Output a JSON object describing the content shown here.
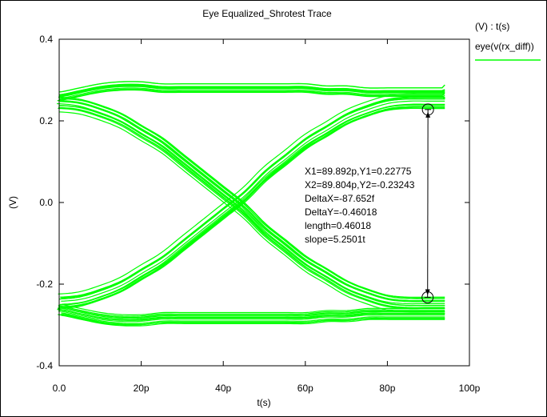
{
  "window": {
    "title": "Eye Equalized_Shrotest Trace"
  },
  "legend": {
    "header": "(V) : t(s)",
    "entry": "eye(v(rx_diff))",
    "color": "#00ff00"
  },
  "chart_data": {
    "type": "line",
    "title": "Eye Equalized_Shrotest Trace",
    "xlabel": "t(s)",
    "ylabel": "(V)",
    "xlim": [
      0,
      100
    ],
    "ylim": [
      -0.4,
      0.4
    ],
    "x_unit": "p",
    "x_ticks": [
      "0.0",
      "20p",
      "40p",
      "60p",
      "80p",
      "100p"
    ],
    "y_ticks": [
      "-0.4",
      "-0.2",
      "0.0",
      "0.2",
      "0.4"
    ],
    "grid": false,
    "legend_position": "top-right",
    "series": [
      {
        "name": "eye(v(rx_diff))",
        "color": "#00ff00",
        "x": [
          0,
          5,
          10,
          15,
          20,
          25,
          30,
          35,
          40,
          45,
          50,
          55,
          60,
          65,
          70,
          75,
          80,
          85,
          90,
          94
        ],
        "y_high_high": [
          0.26,
          0.27,
          0.28,
          0.285,
          0.285,
          0.28,
          0.28,
          0.28,
          0.28,
          0.28,
          0.28,
          0.28,
          0.28,
          0.275,
          0.275,
          0.27,
          0.27,
          0.27,
          0.27,
          0.27
        ],
        "y_low_low": [
          -0.26,
          -0.27,
          -0.28,
          -0.285,
          -0.285,
          -0.28,
          -0.28,
          -0.28,
          -0.28,
          -0.28,
          -0.28,
          -0.28,
          -0.28,
          -0.275,
          -0.275,
          -0.27,
          -0.27,
          -0.27,
          -0.27,
          -0.27
        ],
        "y_falling": [
          0.24,
          0.235,
          0.22,
          0.2,
          0.17,
          0.14,
          0.1,
          0.06,
          0.02,
          -0.02,
          -0.07,
          -0.11,
          -0.15,
          -0.18,
          -0.21,
          -0.23,
          -0.245,
          -0.25,
          -0.25,
          -0.25
        ],
        "y_rising": [
          -0.24,
          -0.235,
          -0.22,
          -0.2,
          -0.17,
          -0.14,
          -0.1,
          -0.06,
          -0.02,
          0.02,
          0.07,
          0.11,
          0.15,
          0.18,
          0.21,
          0.23,
          0.245,
          0.25,
          0.25,
          0.25
        ]
      }
    ],
    "cursor": {
      "x1": 89.892,
      "y1": 0.22775,
      "x2": 89.804,
      "y2": -0.23243,
      "lines": [
        "X1=89.892p,Y1=0.22775",
        "X2=89.804p,Y2=-0.23243",
        "DeltaX=-87.652f",
        "DeltaY=-0.46018",
        "length=0.46018",
        "slope=5.2501t"
      ]
    }
  }
}
